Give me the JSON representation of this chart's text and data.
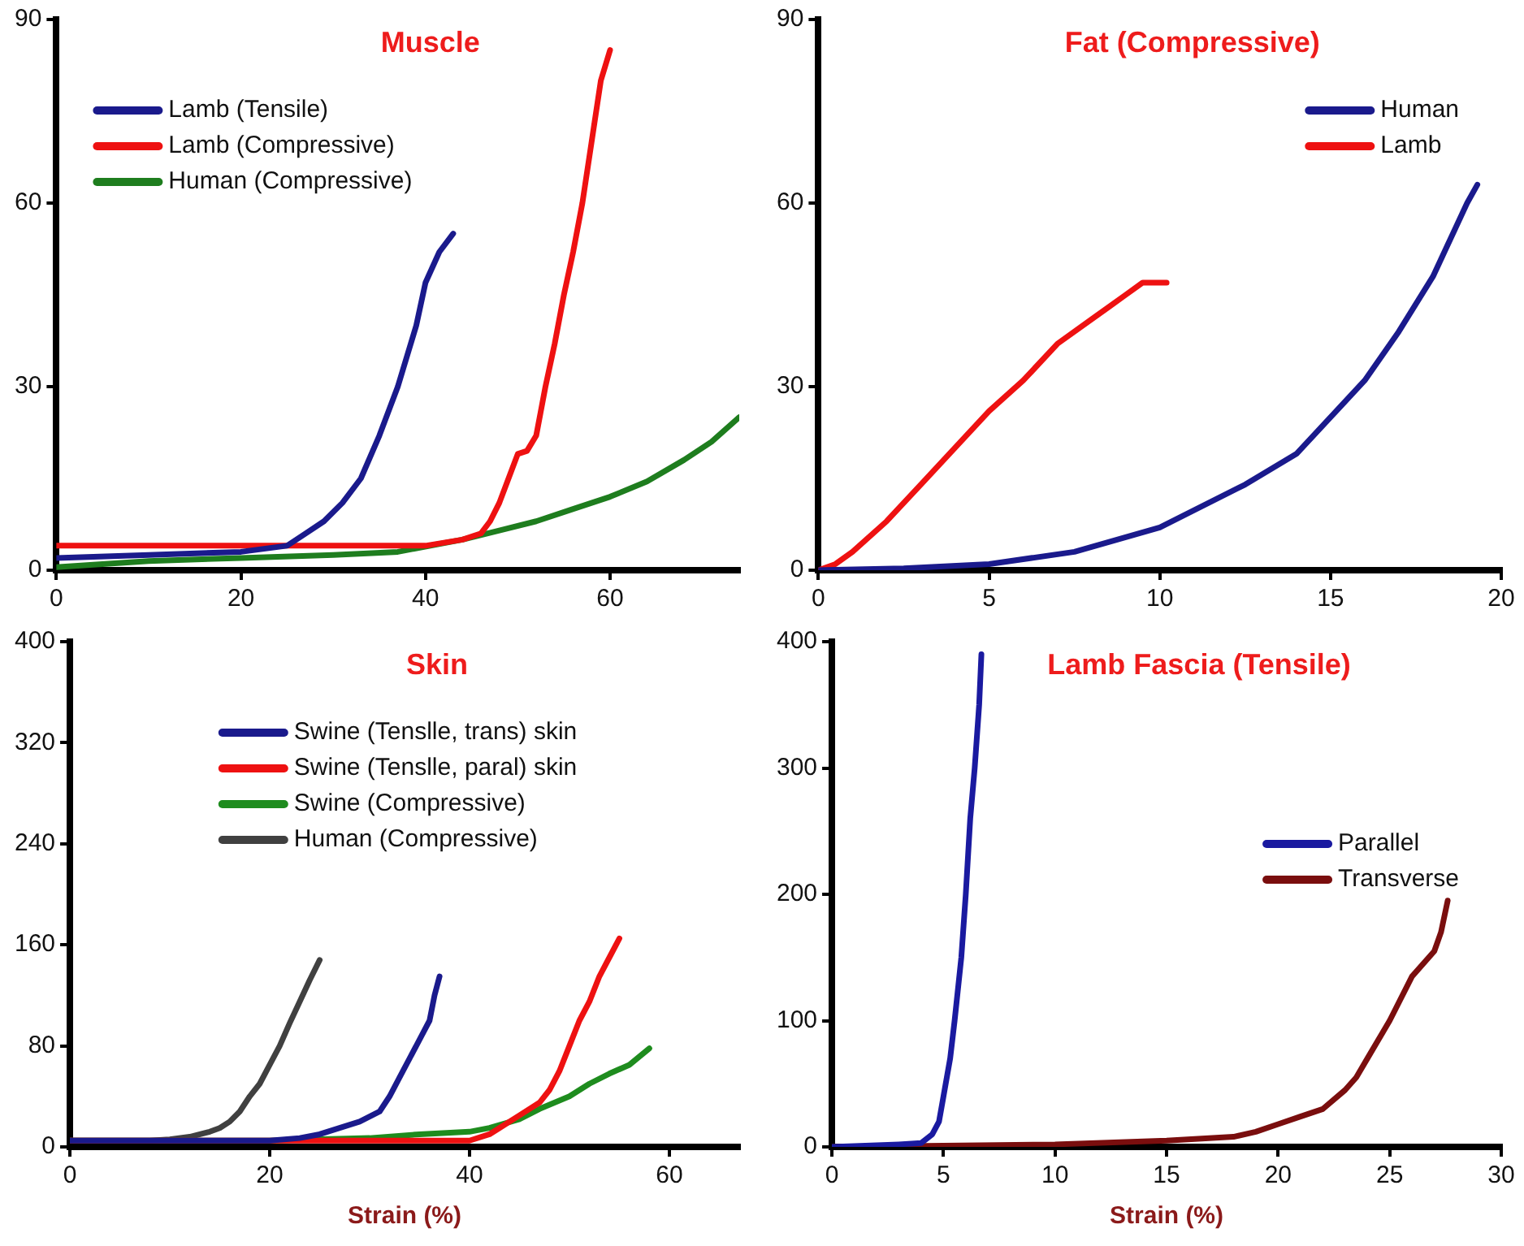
{
  "chart_data": [
    {
      "type": "line",
      "title": "Muscle",
      "xlim": [
        0,
        74
      ],
      "xticks": [
        0,
        20,
        40,
        60
      ],
      "ylim": [
        0,
        90
      ],
      "yticks": [
        0,
        30,
        60,
        90
      ],
      "grid": false,
      "legend": "top left",
      "marker": "none",
      "line_style": "solid",
      "series": [
        {
          "name": "Lamb (Tensile)",
          "color": "#1a1a8c",
          "x": [
            0,
            10,
            20,
            25,
            27,
            29,
            31,
            33,
            35,
            37,
            39,
            40,
            41.5,
            43
          ],
          "values": [
            2,
            2.5,
            3,
            4,
            6,
            8,
            11,
            15,
            22,
            30,
            40,
            47,
            52,
            55
          ]
        },
        {
          "name": "Lamb (Compressive)",
          "color": "#ee1111",
          "x": [
            0,
            20,
            40,
            44,
            46,
            47,
            48,
            49,
            50,
            51,
            52,
            53,
            54,
            55,
            56,
            57,
            58,
            59,
            60
          ],
          "values": [
            4,
            4,
            4,
            5,
            6,
            8,
            11,
            15,
            19,
            19.5,
            22,
            30,
            37,
            45,
            52,
            60,
            70,
            80,
            85
          ]
        },
        {
          "name": "Human (Compressive)",
          "color": "#1e7d1e",
          "x": [
            0,
            10,
            20,
            30,
            37,
            44,
            48,
            52,
            56,
            60,
            64,
            68,
            71,
            74
          ],
          "values": [
            0.5,
            1.5,
            2,
            2.5,
            3,
            5,
            6.5,
            8,
            10,
            12,
            14.5,
            18,
            21,
            25
          ]
        }
      ]
    },
    {
      "type": "line",
      "title": "Fat (Compressive)",
      "xlim": [
        0,
        20
      ],
      "xticks": [
        0,
        5,
        10,
        15,
        20
      ],
      "ylim": [
        0,
        90
      ],
      "yticks": [
        0,
        30,
        60,
        90
      ],
      "grid": false,
      "legend": "top right",
      "marker": "none",
      "line_style": "solid",
      "series": [
        {
          "name": "Human",
          "color": "#1a1a8c",
          "x": [
            0,
            2.5,
            5,
            7.5,
            10,
            12.5,
            14,
            15,
            16,
            17,
            18,
            18.5,
            19,
            19.3
          ],
          "values": [
            0,
            0.3,
            1,
            3,
            7,
            14,
            19,
            25,
            31,
            39,
            48,
            54,
            60,
            63
          ]
        },
        {
          "name": "Lamb",
          "color": "#ee1111",
          "x": [
            0,
            0.5,
            1,
            2,
            3,
            4,
            5,
            6,
            7,
            8,
            8.5,
            9,
            9.5,
            10.2
          ],
          "values": [
            0,
            1,
            3,
            8,
            14,
            20,
            26,
            31,
            37,
            41,
            43,
            45,
            47,
            47
          ]
        }
      ]
    },
    {
      "type": "line",
      "title": "Skin",
      "xlabel": "Strain (%)",
      "xlim": [
        0,
        67
      ],
      "xticks": [
        0,
        20,
        40,
        60
      ],
      "ylim": [
        0,
        400
      ],
      "yticks": [
        0,
        80,
        160,
        240,
        320,
        400
      ],
      "grid": false,
      "legend": "top",
      "marker": "none",
      "line_style": "solid",
      "series": [
        {
          "name": "Swine (Tenslle, trans) skin",
          "color": "#1a1a8c",
          "x": [
            0,
            20,
            23,
            25,
            27,
            29,
            31,
            32,
            33,
            34,
            35,
            36,
            36.5,
            37
          ],
          "values": [
            5,
            5,
            7,
            10,
            15,
            20,
            28,
            40,
            55,
            70,
            85,
            100,
            120,
            135
          ]
        },
        {
          "name": "Swine (Tenslle, paral) skin",
          "color": "#ee1111",
          "x": [
            0,
            40,
            42,
            43,
            45,
            47,
            48,
            49,
            50,
            51,
            52,
            53,
            54,
            55
          ],
          "values": [
            5,
            5,
            10,
            15,
            25,
            35,
            45,
            60,
            80,
            100,
            115,
            135,
            150,
            165
          ]
        },
        {
          "name": "Swine (Compressive)",
          "color": "#1e8c1e",
          "x": [
            0,
            20,
            30,
            35,
            40,
            42,
            45,
            47,
            50,
            52,
            54,
            56,
            58
          ],
          "values": [
            5,
            5,
            7,
            10,
            12,
            15,
            22,
            30,
            40,
            50,
            58,
            65,
            78
          ]
        },
        {
          "name": "Human (Compressive)",
          "color": "#404040",
          "x": [
            0,
            8,
            10,
            12,
            14,
            15,
            16,
            17,
            18,
            19,
            20,
            21,
            22,
            23,
            24,
            25
          ],
          "values": [
            5,
            5,
            6,
            8,
            12,
            15,
            20,
            28,
            40,
            50,
            65,
            80,
            98,
            115,
            132,
            148
          ]
        }
      ]
    },
    {
      "type": "line",
      "title": "Lamb Fascia (Tensile)",
      "xlabel": "Strain (%)",
      "xlim": [
        0,
        30
      ],
      "xticks": [
        0,
        5,
        10,
        15,
        20,
        25,
        30
      ],
      "ylim": [
        0,
        400
      ],
      "yticks": [
        0,
        100,
        200,
        300,
        400
      ],
      "grid": false,
      "legend": "right",
      "marker": "none",
      "line_style": "solid",
      "series": [
        {
          "name": "Parallel",
          "color": "#1a1aa0",
          "x": [
            0,
            3,
            4,
            4.5,
            4.8,
            5,
            5.3,
            5.5,
            5.8,
            6,
            6.2,
            6.4,
            6.6,
            6.7
          ],
          "values": [
            0,
            2,
            3,
            10,
            20,
            40,
            70,
            100,
            150,
            200,
            260,
            300,
            350,
            390
          ]
        },
        {
          "name": "Transverse",
          "color": "#7a0e0e",
          "x": [
            0,
            5,
            10,
            15,
            18,
            19,
            20,
            21,
            22,
            23,
            23.5,
            24,
            25,
            26,
            27,
            27.3,
            27.6
          ],
          "values": [
            0,
            1,
            2,
            5,
            8,
            12,
            18,
            24,
            30,
            45,
            55,
            70,
            100,
            135,
            155,
            170,
            195
          ]
        }
      ]
    }
  ]
}
